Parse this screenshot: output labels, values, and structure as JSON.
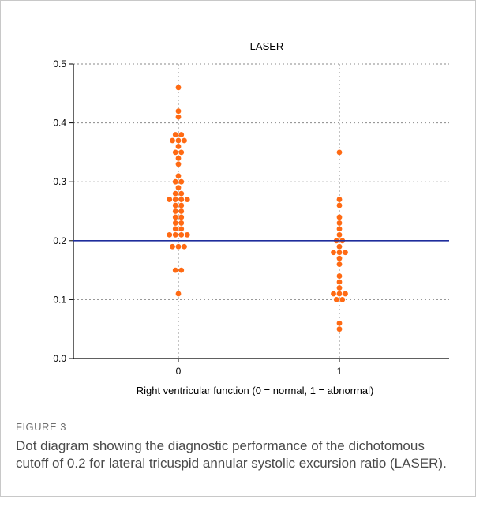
{
  "figure": {
    "label": "FIGURE 3",
    "caption": "Dot diagram showing the diagnostic performance of the dichotomous cutoff of 0.2 for lateral tricuspid annular systolic excursion ratio (LASER)."
  },
  "colors": {
    "dots": "#ff6a13",
    "cutoff_line": "#1f2d9c",
    "grid": "#8a8a8a",
    "axis": "#000000"
  },
  "chart_data": {
    "type": "scatter",
    "title": "LASER",
    "xlabel": "Right ventricular function (0 = normal, 1 = abnormal)",
    "ylabel": "",
    "categories": [
      "0",
      "1"
    ],
    "ylim": [
      0.0,
      0.5
    ],
    "yticks": [
      "0.0",
      "0.1",
      "0.2",
      "0.3",
      "0.4",
      "0.5"
    ],
    "grid": true,
    "reference_line": {
      "y": 0.2
    },
    "groups": [
      {
        "category": "0",
        "values": [
          0.46,
          0.42,
          0.41,
          0.38,
          0.38,
          0.37,
          0.37,
          0.37,
          0.36,
          0.35,
          0.35,
          0.34,
          0.33,
          0.31,
          0.3,
          0.3,
          0.29,
          0.28,
          0.28,
          0.27,
          0.27,
          0.27,
          0.27,
          0.26,
          0.26,
          0.25,
          0.25,
          0.24,
          0.24,
          0.23,
          0.23,
          0.22,
          0.22,
          0.21,
          0.21,
          0.21,
          0.21,
          0.19,
          0.19,
          0.19,
          0.15,
          0.15,
          0.11
        ]
      },
      {
        "category": "1",
        "values": [
          0.35,
          0.27,
          0.26,
          0.24,
          0.23,
          0.22,
          0.21,
          0.2,
          0.2,
          0.19,
          0.18,
          0.18,
          0.18,
          0.17,
          0.16,
          0.14,
          0.13,
          0.12,
          0.11,
          0.11,
          0.11,
          0.1,
          0.1,
          0.06,
          0.05
        ]
      }
    ]
  }
}
